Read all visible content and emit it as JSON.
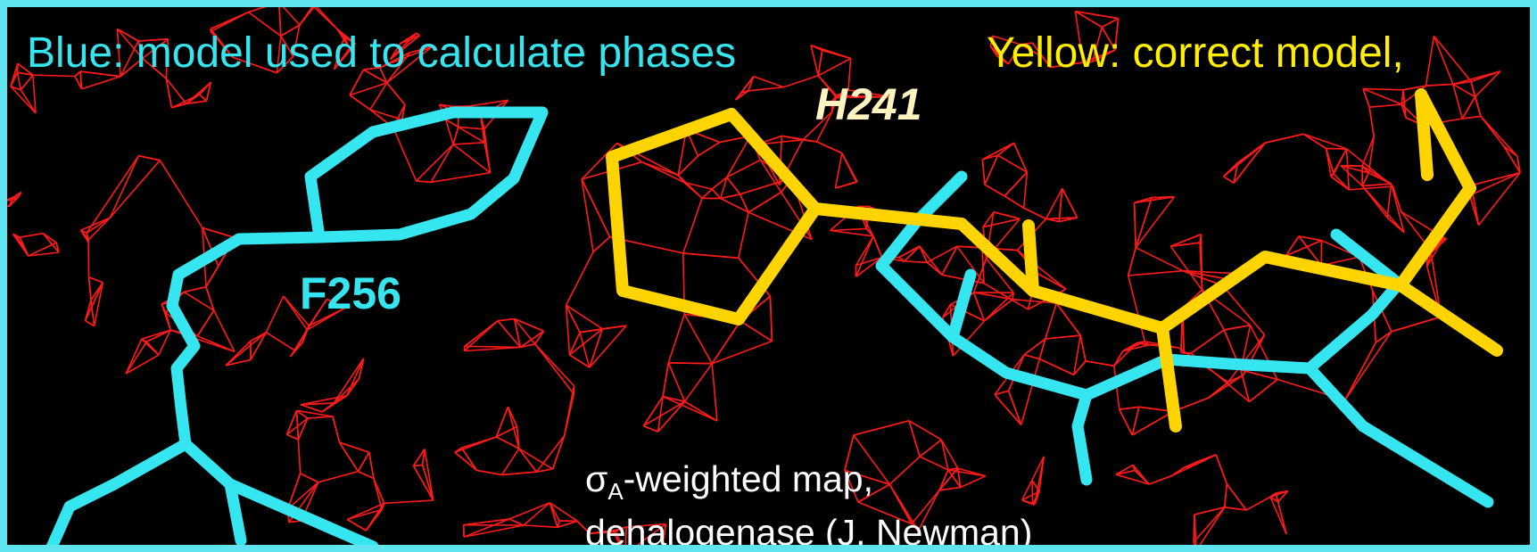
{
  "captions": {
    "blue": "Blue: model used to calculate phases",
    "yellow": "Yellow: correct model,"
  },
  "labels": {
    "h241": "H241",
    "f256": "F256"
  },
  "note": {
    "sigma": "σ",
    "subscript": "A",
    "line1_rest": "-weighted map,",
    "line2": "dehalogenase (J. Newman)"
  },
  "colors": {
    "border": "#5fe3ee",
    "background": "#000000",
    "density_mesh": "#ff1a1a",
    "blue_model": "#35e6f0",
    "yellow_model": "#ffd400",
    "note_text": "#ffffff"
  }
}
